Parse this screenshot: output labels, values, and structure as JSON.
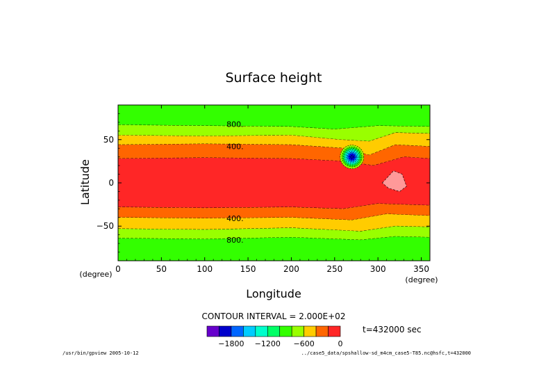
{
  "chart_data": {
    "type": "contour",
    "title": "Surface height",
    "xlabel": "Longitude",
    "ylabel": "Latitude",
    "x_unit": "(degree)",
    "y_unit": "(degree)",
    "xlim": [
      0,
      360
    ],
    "ylim": [
      -90,
      90
    ],
    "x_ticks": [
      0,
      50,
      100,
      150,
      200,
      250,
      300,
      350
    ],
    "y_ticks": [
      -50,
      0,
      50
    ],
    "contour_labels": [
      {
        "text": "800.",
        "lon": 135,
        "lat": 68
      },
      {
        "text": "400.",
        "lon": 135,
        "lat": 42
      },
      {
        "text": "400.",
        "lon": 135,
        "lat": -41
      },
      {
        "text": "800.",
        "lon": 135,
        "lat": -66
      }
    ],
    "bands": [
      {
        "name": "zonal-north-outer",
        "fill": "#33ff00",
        "edges": [
          {
            "lon": 0,
            "lat": 90
          },
          {
            "lon": 360,
            "lat": 90
          }
        ],
        "bottom": [
          {
            "lon": 0,
            "lat": 67
          },
          {
            "lon": 100,
            "lat": 66
          },
          {
            "lon": 200,
            "lat": 65
          },
          {
            "lon": 250,
            "lat": 62
          },
          {
            "lon": 300,
            "lat": 66
          },
          {
            "lon": 360,
            "lat": 65
          }
        ]
      },
      {
        "name": "zonal-north-mid",
        "fill": "#99ff00",
        "bottom": [
          {
            "lon": 0,
            "lat": 55
          },
          {
            "lon": 100,
            "lat": 54
          },
          {
            "lon": 200,
            "lat": 55
          },
          {
            "lon": 255,
            "lat": 50
          },
          {
            "lon": 290,
            "lat": 48
          },
          {
            "lon": 320,
            "lat": 58
          },
          {
            "lon": 360,
            "lat": 57
          }
        ]
      },
      {
        "name": "zonal-north-yellow",
        "fill": "#ffcc00",
        "bottom": [
          {
            "lon": 0,
            "lat": 44
          },
          {
            "lon": 100,
            "lat": 45
          },
          {
            "lon": 200,
            "lat": 44
          },
          {
            "lon": 260,
            "lat": 40
          },
          {
            "lon": 290,
            "lat": 32
          },
          {
            "lon": 320,
            "lat": 44
          },
          {
            "lon": 360,
            "lat": 42
          }
        ]
      },
      {
        "name": "zonal-north-orange",
        "fill": "#ff6600",
        "bottom": [
          {
            "lon": 0,
            "lat": 28
          },
          {
            "lon": 100,
            "lat": 29
          },
          {
            "lon": 200,
            "lat": 28
          },
          {
            "lon": 260,
            "lat": 25
          },
          {
            "lon": 295,
            "lat": 20
          },
          {
            "lon": 330,
            "lat": 30
          },
          {
            "lon": 360,
            "lat": 28
          }
        ]
      },
      {
        "name": "equatorial-red",
        "fill": "#ff2626",
        "bottom": [
          {
            "lon": 0,
            "lat": -28
          },
          {
            "lon": 100,
            "lat": -29
          },
          {
            "lon": 200,
            "lat": -28
          },
          {
            "lon": 260,
            "lat": -30
          },
          {
            "lon": 300,
            "lat": -24
          },
          {
            "lon": 360,
            "lat": -26
          }
        ]
      },
      {
        "name": "zonal-south-orange",
        "fill": "#ff6600",
        "bottom": [
          {
            "lon": 0,
            "lat": -40
          },
          {
            "lon": 100,
            "lat": -41
          },
          {
            "lon": 200,
            "lat": -40
          },
          {
            "lon": 270,
            "lat": -43
          },
          {
            "lon": 310,
            "lat": -36
          },
          {
            "lon": 360,
            "lat": -38
          }
        ]
      },
      {
        "name": "zonal-south-yellow",
        "fill": "#ffcc00",
        "bottom": [
          {
            "lon": 0,
            "lat": -53
          },
          {
            "lon": 100,
            "lat": -54
          },
          {
            "lon": 200,
            "lat": -52
          },
          {
            "lon": 280,
            "lat": -56
          },
          {
            "lon": 320,
            "lat": -50
          },
          {
            "lon": 360,
            "lat": -51
          }
        ]
      },
      {
        "name": "zonal-south-mid",
        "fill": "#99ff00",
        "bottom": [
          {
            "lon": 0,
            "lat": -64
          },
          {
            "lon": 100,
            "lat": -65
          },
          {
            "lon": 200,
            "lat": -63
          },
          {
            "lon": 280,
            "lat": -66
          },
          {
            "lon": 320,
            "lat": -62
          },
          {
            "lon": 360,
            "lat": -63
          }
        ]
      },
      {
        "name": "zonal-south-outer",
        "fill": "#33ff00",
        "bottom": [
          {
            "lon": 0,
            "lat": -90
          },
          {
            "lon": 360,
            "lat": -90
          }
        ]
      }
    ],
    "vortex": {
      "lon": 270,
      "lat": 30,
      "radii_deg": [
        13,
        11,
        9.5,
        8,
        6.5,
        5,
        3.5,
        2
      ],
      "fills": [
        "#99ff00",
        "#33ff00",
        "#00ff66",
        "#00ffcc",
        "#00ccff",
        "#0066ff",
        "#0000ff",
        "#0000aa"
      ]
    },
    "high_blob": {
      "fill": "#ff9999",
      "points": [
        {
          "lon": 305,
          "lat": 0
        },
        {
          "lon": 318,
          "lat": 14
        },
        {
          "lon": 328,
          "lat": 10
        },
        {
          "lon": 333,
          "lat": -4
        },
        {
          "lon": 325,
          "lat": -10
        },
        {
          "lon": 312,
          "lat": -6
        }
      ]
    },
    "colorbar": {
      "colors": [
        "#6600cc",
        "#0000cc",
        "#0066ff",
        "#00ccff",
        "#00ffcc",
        "#00ff66",
        "#33ff00",
        "#99ff00",
        "#ffcc00",
        "#ff6600",
        "#ff2626"
      ],
      "tick_labels": [
        "−1800",
        "−1200",
        "−600",
        "0"
      ],
      "tick_values": [
        -1800,
        -1200,
        -600,
        0
      ],
      "min": -2200,
      "max": 0
    }
  },
  "annotations": {
    "contour_interval": "CONTOUR INTERVAL = 2.000E+02",
    "time": "t=432000 sec",
    "footer_left": "/usr/bin/gpview  2005-10-12",
    "footer_right": "../case5_data/spshallow-sd_m4cm_case5-T85.nc@hsfc,t=432000"
  }
}
